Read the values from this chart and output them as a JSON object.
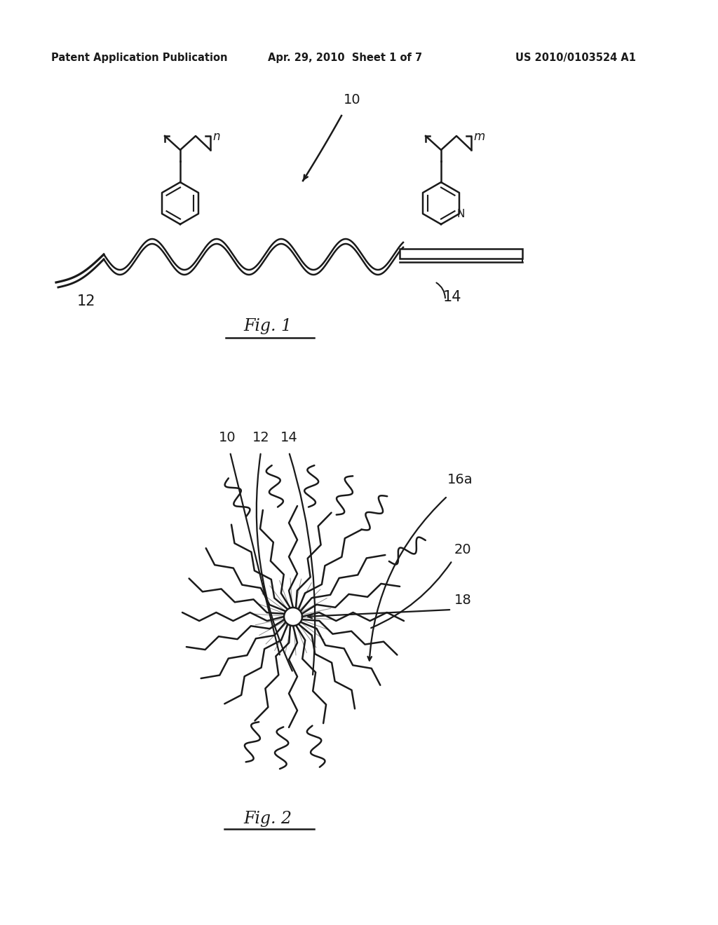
{
  "bg_color": "#ffffff",
  "text_color": "#1a1a1a",
  "header_left": "Patent Application Publication",
  "header_mid": "Apr. 29, 2010  Sheet 1 of 7",
  "header_right": "US 2010/0103524 A1",
  "fig1_label": "Fig. 1",
  "fig2_label": "Fig. 2",
  "lbl_10": "10",
  "lbl_12": "12",
  "lbl_14": "14",
  "lbl_16a": "16a",
  "lbl_18": "18",
  "lbl_20": "20"
}
